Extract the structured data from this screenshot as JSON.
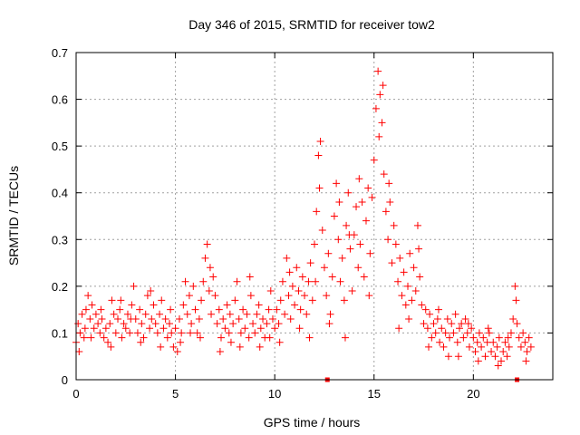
{
  "chart_data": {
    "type": "scatter",
    "title": "Day 346 of 2015, SRMTID for receiver tow2",
    "xlabel": "GPS time / hours",
    "ylabel": "SRMTID / TECUs",
    "xlim": [
      0,
      24
    ],
    "ylim": [
      0,
      0.7
    ],
    "x_ticks": [
      "0",
      "5",
      "10",
      "15",
      "20"
    ],
    "y_ticks": [
      "0",
      "0.1",
      "0.2",
      "0.3",
      "0.4",
      "0.5",
      "0.6",
      "0.7"
    ],
    "x_tick_values": [
      0,
      5,
      10,
      15,
      20
    ],
    "y_tick_values": [
      0,
      0.1,
      0.2,
      0.3,
      0.4,
      0.5,
      0.6,
      0.7
    ],
    "grid": true,
    "marker": "plus",
    "color": "#ff0000",
    "series": [
      {
        "name": "SRMTID",
        "points": [
          [
            0.0,
            0.08
          ],
          [
            0.1,
            0.12
          ],
          [
            0.2,
            0.1
          ],
          [
            0.3,
            0.14
          ],
          [
            0.4,
            0.09
          ],
          [
            0.5,
            0.15
          ],
          [
            0.6,
            0.18
          ],
          [
            0.7,
            0.13
          ],
          [
            0.8,
            0.16
          ],
          [
            0.9,
            0.11
          ],
          [
            1.0,
            0.14
          ],
          [
            1.1,
            0.12
          ],
          [
            1.2,
            0.1
          ],
          [
            1.3,
            0.13
          ],
          [
            1.4,
            0.09
          ],
          [
            1.5,
            0.11
          ],
          [
            1.6,
            0.08
          ],
          [
            1.7,
            0.12
          ],
          [
            1.8,
            0.17
          ],
          [
            1.9,
            0.14
          ],
          [
            2.0,
            0.1
          ],
          [
            2.1,
            0.13
          ],
          [
            2.2,
            0.15
          ],
          [
            2.3,
            0.09
          ],
          [
            2.4,
            0.12
          ],
          [
            2.5,
            0.11
          ],
          [
            2.6,
            0.14
          ],
          [
            2.7,
            0.1
          ],
          [
            2.8,
            0.16
          ],
          [
            2.9,
            0.2
          ],
          [
            3.0,
            0.13
          ],
          [
            3.1,
            0.1
          ],
          [
            3.2,
            0.15
          ],
          [
            3.3,
            0.12
          ],
          [
            3.4,
            0.09
          ],
          [
            3.5,
            0.14
          ],
          [
            3.6,
            0.18
          ],
          [
            3.7,
            0.11
          ],
          [
            3.8,
            0.13
          ],
          [
            3.9,
            0.16
          ],
          [
            4.0,
            0.12
          ],
          [
            4.1,
            0.1
          ],
          [
            4.2,
            0.14
          ],
          [
            4.3,
            0.17
          ],
          [
            4.4,
            0.11
          ],
          [
            4.5,
            0.13
          ],
          [
            4.6,
            0.09
          ],
          [
            4.7,
            0.12
          ],
          [
            4.8,
            0.1
          ],
          [
            4.9,
            0.07
          ],
          [
            5.0,
            0.11
          ],
          [
            5.1,
            0.06
          ],
          [
            5.2,
            0.13
          ],
          [
            5.3,
            0.1
          ],
          [
            5.4,
            0.16
          ],
          [
            5.5,
            0.21
          ],
          [
            5.6,
            0.14
          ],
          [
            5.7,
            0.18
          ],
          [
            5.8,
            0.12
          ],
          [
            5.9,
            0.2
          ],
          [
            6.0,
            0.15
          ],
          [
            6.1,
            0.1
          ],
          [
            6.2,
            0.13
          ],
          [
            6.3,
            0.17
          ],
          [
            6.4,
            0.21
          ],
          [
            6.5,
            0.26
          ],
          [
            6.6,
            0.29
          ],
          [
            6.7,
            0.19
          ],
          [
            6.8,
            0.14
          ],
          [
            6.9,
            0.22
          ],
          [
            7.0,
            0.18
          ],
          [
            7.1,
            0.12
          ],
          [
            7.2,
            0.15
          ],
          [
            7.3,
            0.09
          ],
          [
            7.4,
            0.13
          ],
          [
            7.5,
            0.11
          ],
          [
            7.6,
            0.16
          ],
          [
            7.7,
            0.1
          ],
          [
            7.8,
            0.08
          ],
          [
            7.9,
            0.12
          ],
          [
            8.0,
            0.17
          ],
          [
            8.1,
            0.21
          ],
          [
            8.2,
            0.13
          ],
          [
            8.3,
            0.1
          ],
          [
            8.4,
            0.15
          ],
          [
            8.5,
            0.11
          ],
          [
            8.6,
            0.14
          ],
          [
            8.7,
            0.09
          ],
          [
            8.8,
            0.18
          ],
          [
            8.9,
            0.12
          ],
          [
            9.0,
            0.1
          ],
          [
            9.1,
            0.14
          ],
          [
            9.2,
            0.16
          ],
          [
            9.3,
            0.11
          ],
          [
            9.4,
            0.13
          ],
          [
            9.5,
            0.09
          ],
          [
            9.6,
            0.12
          ],
          [
            9.7,
            0.15
          ],
          [
            9.8,
            0.19
          ],
          [
            9.9,
            0.13
          ],
          [
            10.0,
            0.11
          ],
          [
            10.1,
            0.15
          ],
          [
            10.2,
            0.12
          ],
          [
            10.3,
            0.17
          ],
          [
            10.4,
            0.21
          ],
          [
            10.5,
            0.14
          ],
          [
            10.6,
            0.26
          ],
          [
            10.7,
            0.18
          ],
          [
            10.8,
            0.13
          ],
          [
            10.9,
            0.2
          ],
          [
            11.0,
            0.16
          ],
          [
            11.1,
            0.24
          ],
          [
            11.2,
            0.19
          ],
          [
            11.3,
            0.15
          ],
          [
            11.4,
            0.22
          ],
          [
            11.5,
            0.18
          ],
          [
            11.6,
            0.14
          ],
          [
            11.7,
            0.21
          ],
          [
            11.8,
            0.25
          ],
          [
            11.9,
            0.17
          ],
          [
            12.0,
            0.29
          ],
          [
            12.1,
            0.36
          ],
          [
            12.2,
            0.48
          ],
          [
            12.3,
            0.51
          ],
          [
            12.4,
            0.32
          ],
          [
            12.5,
            0.24
          ],
          [
            12.6,
            0.18
          ],
          [
            12.7,
            0.27
          ],
          [
            12.8,
            0.14
          ],
          [
            12.9,
            0.22
          ],
          [
            13.0,
            0.35
          ],
          [
            13.1,
            0.42
          ],
          [
            13.2,
            0.3
          ],
          [
            13.3,
            0.21
          ],
          [
            13.4,
            0.26
          ],
          [
            13.5,
            0.17
          ],
          [
            13.6,
            0.33
          ],
          [
            13.7,
            0.4
          ],
          [
            13.8,
            0.28
          ],
          [
            13.9,
            0.19
          ],
          [
            14.0,
            0.31
          ],
          [
            14.1,
            0.37
          ],
          [
            14.2,
            0.24
          ],
          [
            14.3,
            0.29
          ],
          [
            14.4,
            0.38
          ],
          [
            14.5,
            0.22
          ],
          [
            14.6,
            0.34
          ],
          [
            14.7,
            0.41
          ],
          [
            14.8,
            0.27
          ],
          [
            14.9,
            0.39
          ],
          [
            15.0,
            0.47
          ],
          [
            15.1,
            0.58
          ],
          [
            15.2,
            0.66
          ],
          [
            15.3,
            0.61
          ],
          [
            15.4,
            0.55
          ],
          [
            15.5,
            0.44
          ],
          [
            15.6,
            0.36
          ],
          [
            15.7,
            0.3
          ],
          [
            15.8,
            0.38
          ],
          [
            15.9,
            0.25
          ],
          [
            16.0,
            0.33
          ],
          [
            16.1,
            0.29
          ],
          [
            16.2,
            0.21
          ],
          [
            16.3,
            0.26
          ],
          [
            16.4,
            0.18
          ],
          [
            16.5,
            0.23
          ],
          [
            16.6,
            0.16
          ],
          [
            16.7,
            0.2
          ],
          [
            16.8,
            0.27
          ],
          [
            16.9,
            0.17
          ],
          [
            17.0,
            0.24
          ],
          [
            17.1,
            0.19
          ],
          [
            17.2,
            0.33
          ],
          [
            17.3,
            0.22
          ],
          [
            17.4,
            0.16
          ],
          [
            17.5,
            0.12
          ],
          [
            17.6,
            0.15
          ],
          [
            17.7,
            0.11
          ],
          [
            17.8,
            0.14
          ],
          [
            17.9,
            0.09
          ],
          [
            18.0,
            0.12
          ],
          [
            18.1,
            0.1
          ],
          [
            18.2,
            0.13
          ],
          [
            18.3,
            0.08
          ],
          [
            18.4,
            0.11
          ],
          [
            18.5,
            0.07
          ],
          [
            18.6,
            0.1
          ],
          [
            18.7,
            0.13
          ],
          [
            18.8,
            0.09
          ],
          [
            18.9,
            0.12
          ],
          [
            19.0,
            0.1
          ],
          [
            19.1,
            0.14
          ],
          [
            19.2,
            0.08
          ],
          [
            19.3,
            0.11
          ],
          [
            19.4,
            0.12
          ],
          [
            19.5,
            0.09
          ],
          [
            19.6,
            0.13
          ],
          [
            19.7,
            0.1
          ],
          [
            19.8,
            0.07
          ],
          [
            19.9,
            0.11
          ],
          [
            20.0,
            0.09
          ],
          [
            20.1,
            0.06
          ],
          [
            20.2,
            0.08
          ],
          [
            20.3,
            0.1
          ],
          [
            20.4,
            0.07
          ],
          [
            20.5,
            0.09
          ],
          [
            20.6,
            0.05
          ],
          [
            20.7,
            0.08
          ],
          [
            20.8,
            0.1
          ],
          [
            20.9,
            0.06
          ],
          [
            21.0,
            0.08
          ],
          [
            21.1,
            0.05
          ],
          [
            21.2,
            0.07
          ],
          [
            21.3,
            0.09
          ],
          [
            21.4,
            0.04
          ],
          [
            21.5,
            0.06
          ],
          [
            21.6,
            0.08
          ],
          [
            21.7,
            0.05
          ],
          [
            21.8,
            0.07
          ],
          [
            21.9,
            0.1
          ],
          [
            22.0,
            0.13
          ],
          [
            22.1,
            0.2
          ],
          [
            22.2,
            0.12
          ],
          [
            22.3,
            0.09
          ],
          [
            22.4,
            0.07
          ],
          [
            22.5,
            0.1
          ],
          [
            22.6,
            0.08
          ],
          [
            22.7,
            0.06
          ],
          [
            22.8,
            0.09
          ],
          [
            22.9,
            0.07
          ],
          [
            0.15,
            0.06
          ],
          [
            0.45,
            0.11
          ],
          [
            0.75,
            0.09
          ],
          [
            1.25,
            0.15
          ],
          [
            1.75,
            0.07
          ],
          [
            2.25,
            0.17
          ],
          [
            2.75,
            0.13
          ],
          [
            3.25,
            0.08
          ],
          [
            3.75,
            0.19
          ],
          [
            4.25,
            0.07
          ],
          [
            4.75,
            0.15
          ],
          [
            5.25,
            0.08
          ],
          [
            5.75,
            0.1
          ],
          [
            6.25,
            0.09
          ],
          [
            6.75,
            0.24
          ],
          [
            7.25,
            0.06
          ],
          [
            7.75,
            0.14
          ],
          [
            8.25,
            0.07
          ],
          [
            8.75,
            0.22
          ],
          [
            9.25,
            0.07
          ],
          [
            9.75,
            0.09
          ],
          [
            10.25,
            0.08
          ],
          [
            10.75,
            0.23
          ],
          [
            11.25,
            0.11
          ],
          [
            11.75,
            0.09
          ],
          [
            12.25,
            0.41
          ],
          [
            12.75,
            0.12
          ],
          [
            13.25,
            0.38
          ],
          [
            13.75,
            0.31
          ],
          [
            14.25,
            0.43
          ],
          [
            14.75,
            0.18
          ],
          [
            15.25,
            0.52
          ],
          [
            15.45,
            0.63
          ],
          [
            15.75,
            0.42
          ],
          [
            16.25,
            0.11
          ],
          [
            16.75,
            0.13
          ],
          [
            17.25,
            0.28
          ],
          [
            17.75,
            0.07
          ],
          [
            18.25,
            0.15
          ],
          [
            18.75,
            0.05
          ],
          [
            19.25,
            0.05
          ],
          [
            19.75,
            0.12
          ],
          [
            20.25,
            0.04
          ],
          [
            20.75,
            0.11
          ],
          [
            21.25,
            0.03
          ],
          [
            21.75,
            0.09
          ],
          [
            22.15,
            0.17
          ],
          [
            22.65,
            0.04
          ],
          [
            12.05,
            0.21
          ],
          [
            13.55,
            0.09
          ]
        ]
      }
    ],
    "bottom_markers_x": [
      12.65,
      22.2
    ]
  }
}
